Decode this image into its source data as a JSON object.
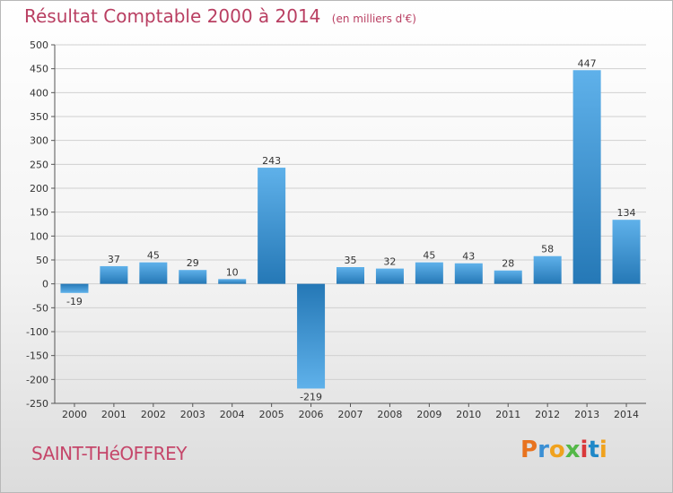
{
  "header": {
    "title": "Résultat Comptable 2000 à 2014",
    "unit": "(en milliers d'€)"
  },
  "footer": {
    "town": "SAINT-THéOFFREY",
    "brand": "Proxiti",
    "brand_colors": [
      "#e8731f",
      "#3a8fd4",
      "#f0a21e",
      "#54b848",
      "#d9383a",
      "#1f88c8",
      "#f0a21e"
    ]
  },
  "colors": {
    "bar_light": "#5fb1ea",
    "bar_dark": "#2578b6",
    "title": "#b93f62",
    "grid": "#d0d0d0"
  },
  "chart_data": {
    "type": "bar",
    "title": "Résultat Comptable 2000 à 2014",
    "xlabel": "",
    "ylabel": "",
    "ylim": [
      -250,
      500
    ],
    "yticks": [
      -250,
      -200,
      -150,
      -100,
      -50,
      0,
      50,
      100,
      150,
      200,
      250,
      300,
      350,
      400,
      450,
      500
    ],
    "categories": [
      "2000",
      "2001",
      "2002",
      "2003",
      "2004",
      "2005",
      "2006",
      "2007",
      "2008",
      "2009",
      "2010",
      "2011",
      "2012",
      "2013",
      "2014"
    ],
    "values": [
      -19,
      37,
      45,
      29,
      10,
      243,
      -219,
      35,
      32,
      45,
      43,
      28,
      58,
      447,
      134
    ],
    "grid": true
  }
}
